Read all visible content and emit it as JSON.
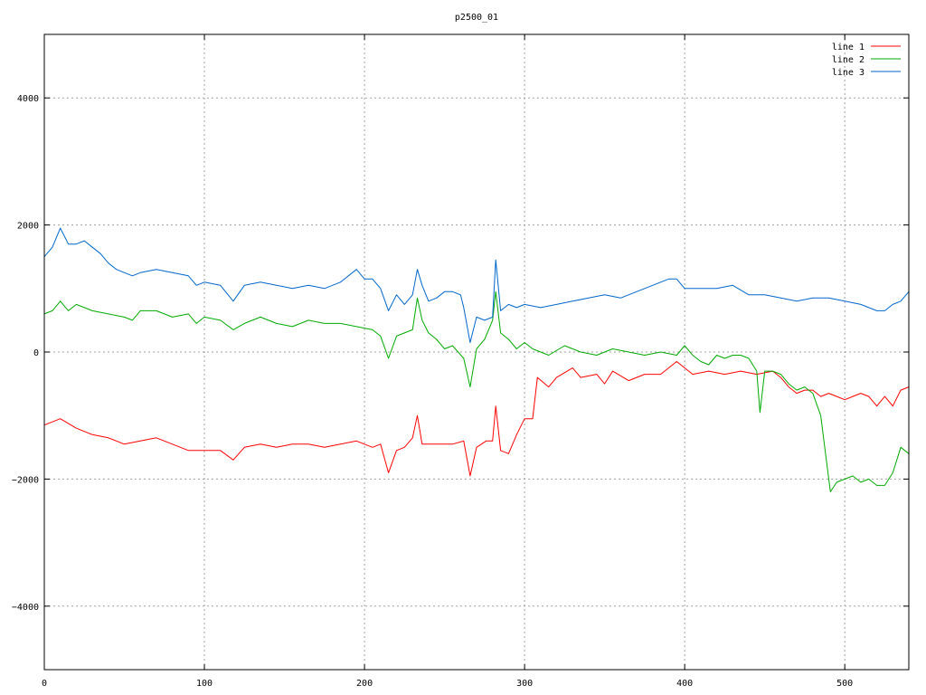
{
  "chart_data": {
    "type": "line",
    "title": "p2500_01",
    "xlabel": "",
    "ylabel": "",
    "xlim": [
      0,
      540
    ],
    "ylim": [
      -5000,
      5000
    ],
    "x_ticks": [
      0,
      100,
      200,
      300,
      400,
      500
    ],
    "y_ticks": [
      -4000,
      -2000,
      0,
      2000,
      4000
    ],
    "y_tick_labels": [
      "−4000",
      "−2000",
      "0",
      "2000",
      "4000"
    ],
    "grid": true,
    "legend_position": "top-right",
    "series": [
      {
        "name": "line 1",
        "color": "#ff0000",
        "points": [
          [
            0,
            -1150
          ],
          [
            10,
            -1050
          ],
          [
            20,
            -1200
          ],
          [
            30,
            -1300
          ],
          [
            40,
            -1350
          ],
          [
            50,
            -1450
          ],
          [
            60,
            -1400
          ],
          [
            70,
            -1350
          ],
          [
            80,
            -1450
          ],
          [
            90,
            -1550
          ],
          [
            100,
            -1550
          ],
          [
            110,
            -1550
          ],
          [
            118,
            -1700
          ],
          [
            125,
            -1500
          ],
          [
            135,
            -1450
          ],
          [
            145,
            -1500
          ],
          [
            155,
            -1450
          ],
          [
            165,
            -1450
          ],
          [
            175,
            -1500
          ],
          [
            185,
            -1450
          ],
          [
            195,
            -1400
          ],
          [
            205,
            -1500
          ],
          [
            210,
            -1450
          ],
          [
            215,
            -1900
          ],
          [
            220,
            -1550
          ],
          [
            225,
            -1500
          ],
          [
            230,
            -1350
          ],
          [
            233,
            -1000
          ],
          [
            236,
            -1450
          ],
          [
            245,
            -1450
          ],
          [
            255,
            -1450
          ],
          [
            262,
            -1400
          ],
          [
            266,
            -1950
          ],
          [
            270,
            -1500
          ],
          [
            276,
            -1400
          ],
          [
            280,
            -1400
          ],
          [
            282,
            -850
          ],
          [
            285,
            -1550
          ],
          [
            290,
            -1600
          ],
          [
            295,
            -1300
          ],
          [
            300,
            -1050
          ],
          [
            305,
            -1050
          ],
          [
            308,
            -400
          ],
          [
            315,
            -550
          ],
          [
            320,
            -400
          ],
          [
            330,
            -250
          ],
          [
            335,
            -400
          ],
          [
            345,
            -350
          ],
          [
            350,
            -500
          ],
          [
            355,
            -300
          ],
          [
            365,
            -450
          ],
          [
            375,
            -350
          ],
          [
            385,
            -350
          ],
          [
            395,
            -150
          ],
          [
            405,
            -350
          ],
          [
            415,
            -300
          ],
          [
            425,
            -350
          ],
          [
            435,
            -300
          ],
          [
            445,
            -350
          ],
          [
            455,
            -300
          ],
          [
            460,
            -400
          ],
          [
            465,
            -550
          ],
          [
            470,
            -650
          ],
          [
            475,
            -600
          ],
          [
            480,
            -600
          ],
          [
            485,
            -700
          ],
          [
            490,
            -650
          ],
          [
            495,
            -700
          ],
          [
            500,
            -750
          ],
          [
            505,
            -700
          ],
          [
            510,
            -650
          ],
          [
            515,
            -700
          ],
          [
            520,
            -850
          ],
          [
            525,
            -700
          ],
          [
            530,
            -850
          ],
          [
            535,
            -600
          ],
          [
            540,
            -550
          ]
        ]
      },
      {
        "name": "line 2",
        "color": "#00aa00",
        "points": [
          [
            0,
            600
          ],
          [
            5,
            650
          ],
          [
            10,
            800
          ],
          [
            15,
            650
          ],
          [
            20,
            750
          ],
          [
            25,
            700
          ],
          [
            30,
            650
          ],
          [
            40,
            600
          ],
          [
            50,
            550
          ],
          [
            55,
            500
          ],
          [
            60,
            650
          ],
          [
            70,
            650
          ],
          [
            80,
            550
          ],
          [
            90,
            600
          ],
          [
            95,
            450
          ],
          [
            100,
            550
          ],
          [
            110,
            500
          ],
          [
            118,
            350
          ],
          [
            125,
            450
          ],
          [
            135,
            550
          ],
          [
            145,
            450
          ],
          [
            155,
            400
          ],
          [
            165,
            500
          ],
          [
            175,
            450
          ],
          [
            185,
            450
          ],
          [
            195,
            400
          ],
          [
            205,
            350
          ],
          [
            210,
            250
          ],
          [
            215,
            -100
          ],
          [
            220,
            250
          ],
          [
            225,
            300
          ],
          [
            230,
            350
          ],
          [
            233,
            850
          ],
          [
            236,
            500
          ],
          [
            240,
            300
          ],
          [
            245,
            200
          ],
          [
            250,
            50
          ],
          [
            255,
            100
          ],
          [
            262,
            -100
          ],
          [
            266,
            -550
          ],
          [
            270,
            50
          ],
          [
            275,
            200
          ],
          [
            280,
            500
          ],
          [
            282,
            950
          ],
          [
            285,
            300
          ],
          [
            290,
            200
          ],
          [
            295,
            50
          ],
          [
            300,
            150
          ],
          [
            305,
            50
          ],
          [
            315,
            -50
          ],
          [
            325,
            100
          ],
          [
            335,
            0
          ],
          [
            345,
            -50
          ],
          [
            355,
            50
          ],
          [
            365,
            0
          ],
          [
            375,
            -50
          ],
          [
            385,
            0
          ],
          [
            395,
            -50
          ],
          [
            400,
            100
          ],
          [
            405,
            -50
          ],
          [
            410,
            -150
          ],
          [
            415,
            -200
          ],
          [
            420,
            -50
          ],
          [
            425,
            -100
          ],
          [
            430,
            -50
          ],
          [
            435,
            -50
          ],
          [
            440,
            -100
          ],
          [
            445,
            -300
          ],
          [
            447,
            -950
          ],
          [
            450,
            -300
          ],
          [
            455,
            -300
          ],
          [
            460,
            -350
          ],
          [
            465,
            -500
          ],
          [
            470,
            -600
          ],
          [
            475,
            -550
          ],
          [
            480,
            -650
          ],
          [
            485,
            -1000
          ],
          [
            488,
            -1600
          ],
          [
            491,
            -2200
          ],
          [
            495,
            -2050
          ],
          [
            500,
            -2000
          ],
          [
            505,
            -1950
          ],
          [
            510,
            -2050
          ],
          [
            515,
            -2000
          ],
          [
            520,
            -2100
          ],
          [
            525,
            -2100
          ],
          [
            530,
            -1900
          ],
          [
            535,
            -1500
          ],
          [
            540,
            -1600
          ]
        ]
      },
      {
        "name": "line 3",
        "color": "#0066cc",
        "points": [
          [
            0,
            1500
          ],
          [
            5,
            1650
          ],
          [
            10,
            1950
          ],
          [
            15,
            1700
          ],
          [
            20,
            1700
          ],
          [
            25,
            1750
          ],
          [
            30,
            1650
          ],
          [
            35,
            1550
          ],
          [
            40,
            1400
          ],
          [
            45,
            1300
          ],
          [
            50,
            1250
          ],
          [
            55,
            1200
          ],
          [
            60,
            1250
          ],
          [
            70,
            1300
          ],
          [
            80,
            1250
          ],
          [
            90,
            1200
          ],
          [
            95,
            1050
          ],
          [
            100,
            1100
          ],
          [
            110,
            1050
          ],
          [
            118,
            800
          ],
          [
            125,
            1050
          ],
          [
            135,
            1100
          ],
          [
            145,
            1050
          ],
          [
            155,
            1000
          ],
          [
            165,
            1050
          ],
          [
            175,
            1000
          ],
          [
            185,
            1100
          ],
          [
            195,
            1300
          ],
          [
            200,
            1150
          ],
          [
            205,
            1150
          ],
          [
            210,
            1000
          ],
          [
            215,
            650
          ],
          [
            220,
            900
          ],
          [
            225,
            750
          ],
          [
            230,
            900
          ],
          [
            233,
            1300
          ],
          [
            236,
            1050
          ],
          [
            240,
            800
          ],
          [
            245,
            850
          ],
          [
            250,
            950
          ],
          [
            255,
            950
          ],
          [
            260,
            900
          ],
          [
            262,
            700
          ],
          [
            266,
            150
          ],
          [
            270,
            550
          ],
          [
            275,
            500
          ],
          [
            280,
            550
          ],
          [
            282,
            1450
          ],
          [
            285,
            650
          ],
          [
            290,
            750
          ],
          [
            295,
            700
          ],
          [
            300,
            750
          ],
          [
            310,
            700
          ],
          [
            320,
            750
          ],
          [
            330,
            800
          ],
          [
            340,
            850
          ],
          [
            350,
            900
          ],
          [
            360,
            850
          ],
          [
            370,
            950
          ],
          [
            380,
            1050
          ],
          [
            390,
            1150
          ],
          [
            395,
            1150
          ],
          [
            400,
            1000
          ],
          [
            410,
            1000
          ],
          [
            420,
            1000
          ],
          [
            430,
            1050
          ],
          [
            440,
            900
          ],
          [
            450,
            900
          ],
          [
            460,
            850
          ],
          [
            470,
            800
          ],
          [
            480,
            850
          ],
          [
            490,
            850
          ],
          [
            500,
            800
          ],
          [
            510,
            750
          ],
          [
            520,
            650
          ],
          [
            525,
            650
          ],
          [
            530,
            750
          ],
          [
            535,
            800
          ],
          [
            540,
            950
          ]
        ]
      }
    ]
  }
}
